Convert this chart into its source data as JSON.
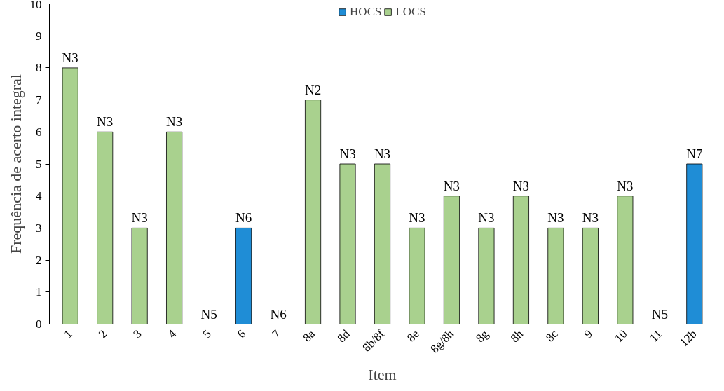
{
  "chart_data": {
    "type": "bar",
    "xlabel": "Item",
    "ylabel": "Frequência de acerto integral",
    "categories": [
      "1",
      "2",
      "3",
      "4",
      "5",
      "6",
      "7",
      "8a",
      "8d",
      "8b/8f",
      "8e",
      "8g/8h",
      "8g",
      "8h",
      "8c",
      "9",
      "10",
      "11",
      "12b"
    ],
    "series": [
      {
        "name": "HOCS",
        "color": "#1f8dd6",
        "values": [
          null,
          null,
          null,
          null,
          null,
          3,
          null,
          null,
          null,
          null,
          null,
          null,
          null,
          null,
          null,
          null,
          null,
          null,
          5
        ],
        "value_labels": [
          null,
          null,
          null,
          null,
          null,
          "N6",
          null,
          null,
          null,
          null,
          null,
          null,
          null,
          null,
          null,
          null,
          null,
          null,
          "N7"
        ]
      },
      {
        "name": "LOCS",
        "color": "#a9d18e",
        "values": [
          8,
          6,
          3,
          6,
          0,
          null,
          0,
          7,
          5,
          5,
          3,
          4,
          3,
          4,
          3,
          3,
          4,
          0,
          null
        ],
        "value_labels": [
          "N3",
          "N3",
          "N3",
          "N3",
          "N5",
          null,
          "N6",
          "N2",
          "N3",
          "N3",
          "N3",
          "N3",
          "N3",
          "N3",
          "N3",
          "N3",
          "N3",
          "N5",
          null
        ]
      }
    ],
    "ylim": [
      0,
      10
    ],
    "yticks": [
      0,
      1,
      2,
      3,
      4,
      5,
      6,
      7,
      8,
      9,
      10
    ],
    "grid": false,
    "legend": "top"
  }
}
